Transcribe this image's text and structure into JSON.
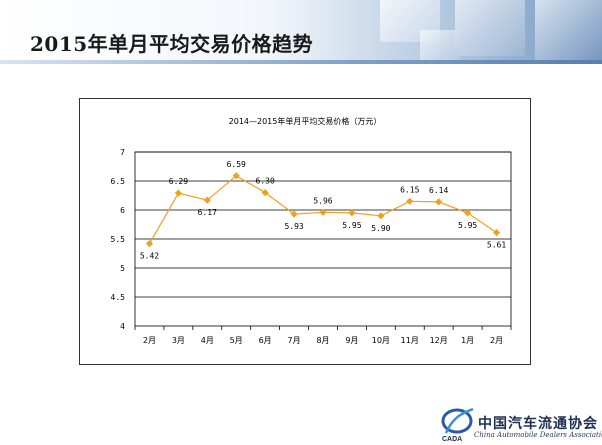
{
  "slide": {
    "title": "2015年单月平均交易价格趋势"
  },
  "footer": {
    "logo_cn": "中国汽车流通协会",
    "logo_en": "China Automobile Dealers Association",
    "logo_mark": "CADA"
  },
  "colors": {
    "line": "#f0a020",
    "marker": "#f0a020",
    "axis": "#000000",
    "grid": "#000000"
  },
  "chart_data": {
    "type": "line",
    "title": "2014—2015年单月平均交易价格（万元）",
    "xlabel": "",
    "ylabel": "",
    "categories": [
      "2月",
      "3月",
      "4月",
      "5月",
      "6月",
      "7月",
      "8月",
      "9月",
      "10月",
      "11月",
      "12月",
      "1月",
      "2月"
    ],
    "series": [
      {
        "values": [
          5.42,
          6.29,
          6.17,
          6.59,
          6.3,
          5.93,
          5.96,
          5.95,
          5.9,
          6.15,
          6.14,
          5.95,
          5.61
        ],
        "labels": [
          "5.42",
          "6.29",
          "6.17",
          "6.59",
          "6.30",
          "5.93",
          "5.96",
          "5.95",
          "5.90",
          "6.15",
          "6.14",
          "5.95",
          "5.61"
        ]
      }
    ],
    "ylim": [
      4,
      7
    ],
    "yticks": [
      "4",
      "4.5",
      "5",
      "5.5",
      "6",
      "6.5",
      "7"
    ],
    "grid": true,
    "legend": "none"
  }
}
